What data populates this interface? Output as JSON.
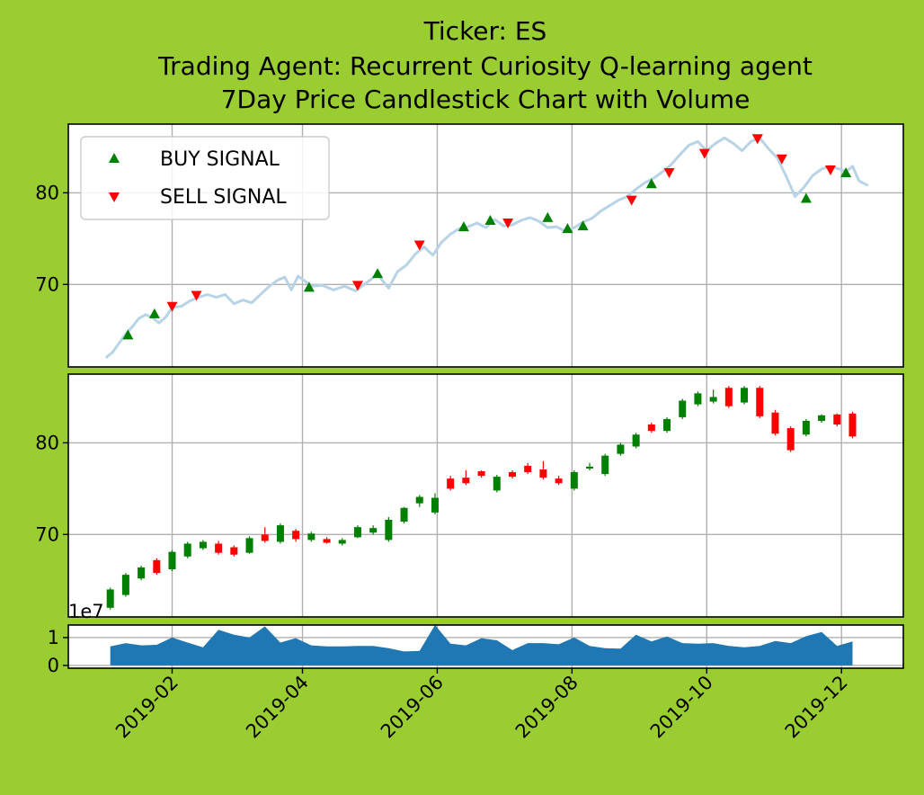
{
  "title_lines": [
    "Ticker: ES",
    "Trading Agent: Recurrent Curiosity Q-learning agent",
    "7Day Price Candlestick Chart with Volume"
  ],
  "colors": {
    "background": "#9acd32",
    "price_line": "#b8d3e6",
    "buy": "#008000",
    "sell": "#ff0000",
    "up_candle": "#008000",
    "down_candle": "#ff0000",
    "volume_fill": "#1f77b4"
  },
  "chart_data": [
    {
      "type": "line",
      "panel": "price",
      "legend": {
        "placement": "top-left",
        "buy_label": "BUY SIGNAL",
        "sell_label": "SELL SIGNAL"
      },
      "grid": true,
      "ylim": [
        61,
        87.5
      ],
      "yticks": [
        "70",
        "80"
      ],
      "ytick_values": [
        70,
        80
      ],
      "xticks": [
        "2019-02",
        "2019-04",
        "2019-06",
        "2019-08",
        "2019-10",
        "2019-12"
      ],
      "xtick_dates": [
        "2019-02-01",
        "2019-04-01",
        "2019-06-01",
        "2019-08-01",
        "2019-10-01",
        "2019-12-01"
      ],
      "xlim": [
        "2018-12-16",
        "2019-12-29"
      ],
      "price": [
        [
          "2019-01-02",
          62.0
        ],
        [
          "2019-01-05",
          62.6
        ],
        [
          "2019-01-08",
          63.6
        ],
        [
          "2019-01-11",
          64.6
        ],
        [
          "2019-01-14",
          65.4
        ],
        [
          "2019-01-17",
          66.3
        ],
        [
          "2019-01-20",
          66.7
        ],
        [
          "2019-01-23",
          66.4
        ],
        [
          "2019-01-26",
          65.8
        ],
        [
          "2019-01-29",
          66.4
        ],
        [
          "2019-02-01",
          67.5
        ],
        [
          "2019-02-05",
          67.6
        ],
        [
          "2019-02-09",
          68.2
        ],
        [
          "2019-02-13",
          68.6
        ],
        [
          "2019-02-17",
          68.9
        ],
        [
          "2019-02-21",
          68.6
        ],
        [
          "2019-02-25",
          68.9
        ],
        [
          "2019-03-01",
          67.9
        ],
        [
          "2019-03-05",
          68.3
        ],
        [
          "2019-03-09",
          68.0
        ],
        [
          "2019-03-13",
          68.9
        ],
        [
          "2019-03-17",
          69.8
        ],
        [
          "2019-03-21",
          70.5
        ],
        [
          "2019-03-24",
          70.8
        ],
        [
          "2019-03-27",
          69.4
        ],
        [
          "2019-03-30",
          70.9
        ],
        [
          "2019-04-02",
          70.4
        ],
        [
          "2019-04-05",
          69.8
        ],
        [
          "2019-04-10",
          69.9
        ],
        [
          "2019-04-15",
          69.4
        ],
        [
          "2019-04-20",
          69.8
        ],
        [
          "2019-04-25",
          69.3
        ],
        [
          "2019-04-30",
          70.2
        ],
        [
          "2019-05-05",
          71.1
        ],
        [
          "2019-05-10",
          69.6
        ],
        [
          "2019-05-14",
          71.4
        ],
        [
          "2019-05-18",
          72.1
        ],
        [
          "2019-05-22",
          73.3
        ],
        [
          "2019-05-26",
          74.1
        ],
        [
          "2019-05-30",
          73.2
        ],
        [
          "2019-06-03",
          74.6
        ],
        [
          "2019-06-07",
          75.5
        ],
        [
          "2019-06-11",
          76.1
        ],
        [
          "2019-06-15",
          76.3
        ],
        [
          "2019-06-19",
          76.7
        ],
        [
          "2019-06-23",
          76.2
        ],
        [
          "2019-06-27",
          77.1
        ],
        [
          "2019-07-01",
          76.4
        ],
        [
          "2019-07-05",
          76.5
        ],
        [
          "2019-07-09",
          77.0
        ],
        [
          "2019-07-13",
          77.3
        ],
        [
          "2019-07-17",
          76.9
        ],
        [
          "2019-07-21",
          76.2
        ],
        [
          "2019-07-25",
          76.3
        ],
        [
          "2019-07-29",
          75.8
        ],
        [
          "2019-08-02",
          76.2
        ],
        [
          "2019-08-06",
          76.8
        ],
        [
          "2019-08-10",
          77.2
        ],
        [
          "2019-08-14",
          78.0
        ],
        [
          "2019-08-18",
          78.6
        ],
        [
          "2019-08-22",
          79.2
        ],
        [
          "2019-08-26",
          79.6
        ],
        [
          "2019-08-30",
          80.4
        ],
        [
          "2019-09-03",
          81.1
        ],
        [
          "2019-09-07",
          81.6
        ],
        [
          "2019-09-11",
          82.3
        ],
        [
          "2019-09-15",
          83.1
        ],
        [
          "2019-09-19",
          84.2
        ],
        [
          "2019-09-23",
          85.2
        ],
        [
          "2019-09-27",
          85.6
        ],
        [
          "2019-10-01",
          84.6
        ],
        [
          "2019-10-05",
          85.4
        ],
        [
          "2019-10-09",
          86.0
        ],
        [
          "2019-10-13",
          85.4
        ],
        [
          "2019-10-17",
          84.6
        ],
        [
          "2019-10-21",
          85.6
        ],
        [
          "2019-10-25",
          86.0
        ],
        [
          "2019-10-29",
          84.8
        ],
        [
          "2019-11-02",
          83.8
        ],
        [
          "2019-11-06",
          81.8
        ],
        [
          "2019-11-10",
          79.6
        ],
        [
          "2019-11-14",
          80.6
        ],
        [
          "2019-11-18",
          81.9
        ],
        [
          "2019-11-22",
          82.6
        ],
        [
          "2019-11-26",
          82.9
        ],
        [
          "2019-11-30",
          82.6
        ],
        [
          "2019-12-03",
          82.3
        ],
        [
          "2019-12-06",
          82.9
        ],
        [
          "2019-12-09",
          81.3
        ],
        [
          "2019-12-13",
          80.8
        ]
      ],
      "buy_signals": [
        [
          "2019-01-12",
          64.5
        ],
        [
          "2019-01-24",
          66.8
        ],
        [
          "2019-04-04",
          69.7
        ],
        [
          "2019-05-05",
          71.2
        ],
        [
          "2019-06-13",
          76.3
        ],
        [
          "2019-06-25",
          77.0
        ],
        [
          "2019-07-21",
          77.3
        ],
        [
          "2019-07-30",
          76.1
        ],
        [
          "2019-08-06",
          76.4
        ],
        [
          "2019-09-06",
          81.0
        ],
        [
          "2019-11-15",
          79.4
        ],
        [
          "2019-12-03",
          82.2
        ]
      ],
      "sell_signals": [
        [
          "2019-02-01",
          67.6
        ],
        [
          "2019-02-12",
          68.8
        ],
        [
          "2019-04-26",
          69.9
        ],
        [
          "2019-05-24",
          74.3
        ],
        [
          "2019-07-03",
          76.7
        ],
        [
          "2019-08-28",
          79.2
        ],
        [
          "2019-09-14",
          82.2
        ],
        [
          "2019-09-30",
          84.3
        ],
        [
          "2019-10-24",
          85.9
        ],
        [
          "2019-11-04",
          83.7
        ],
        [
          "2019-11-26",
          82.5
        ]
      ]
    },
    {
      "type": "candlestick",
      "panel": "candles",
      "period": "7Day",
      "grid": true,
      "ylim": [
        61,
        87.5
      ],
      "yticks": [
        "70",
        "80"
      ],
      "ytick_values": [
        70,
        80
      ],
      "candles": [
        [
          "2019-01-04",
          62.0,
          64.0,
          61.8,
          64.2
        ],
        [
          "2019-01-11",
          63.4,
          65.6,
          63.2,
          65.8
        ],
        [
          "2019-01-18",
          65.2,
          66.4,
          65.0,
          66.6
        ],
        [
          "2019-01-25",
          67.2,
          65.8,
          65.6,
          67.4
        ],
        [
          "2019-02-01",
          66.2,
          68.1,
          66.0,
          68.3
        ],
        [
          "2019-02-08",
          67.6,
          69.0,
          67.4,
          69.2
        ],
        [
          "2019-02-15",
          68.5,
          69.2,
          68.3,
          69.4
        ],
        [
          "2019-02-22",
          69.0,
          68.0,
          67.8,
          69.3
        ],
        [
          "2019-03-01",
          68.6,
          67.8,
          67.6,
          68.8
        ],
        [
          "2019-03-08",
          68.0,
          69.6,
          67.9,
          69.8
        ],
        [
          "2019-03-15",
          70.0,
          69.3,
          69.1,
          70.8
        ],
        [
          "2019-03-22",
          69.2,
          71.0,
          69.0,
          71.2
        ],
        [
          "2019-03-29",
          70.4,
          69.5,
          69.2,
          70.6
        ],
        [
          "2019-04-05",
          69.4,
          70.1,
          69.2,
          70.3
        ],
        [
          "2019-04-12",
          69.5,
          69.1,
          69.0,
          69.7
        ],
        [
          "2019-04-19",
          69.0,
          69.4,
          68.8,
          69.6
        ],
        [
          "2019-04-26",
          69.7,
          70.8,
          69.6,
          71.0
        ],
        [
          "2019-05-03",
          70.2,
          70.7,
          70.0,
          71.0
        ],
        [
          "2019-05-10",
          69.4,
          71.6,
          69.2,
          71.9
        ],
        [
          "2019-05-17",
          71.4,
          72.9,
          71.2,
          73.0
        ],
        [
          "2019-05-24",
          73.4,
          74.1,
          73.0,
          74.3
        ],
        [
          "2019-05-31",
          72.4,
          74.0,
          72.2,
          74.5
        ],
        [
          "2019-06-07",
          76.1,
          75.0,
          74.8,
          76.4
        ],
        [
          "2019-06-14",
          76.2,
          75.6,
          75.4,
          77.0
        ],
        [
          "2019-06-21",
          76.9,
          76.4,
          76.2,
          77.0
        ],
        [
          "2019-06-28",
          74.8,
          76.3,
          74.6,
          76.5
        ],
        [
          "2019-07-05",
          76.8,
          76.3,
          76.1,
          77.0
        ],
        [
          "2019-07-12",
          77.5,
          76.8,
          76.6,
          77.8
        ],
        [
          "2019-07-19",
          77.1,
          76.2,
          76.0,
          78.0
        ],
        [
          "2019-07-26",
          76.1,
          75.6,
          75.4,
          76.4
        ],
        [
          "2019-08-02",
          75.0,
          76.8,
          74.8,
          77.0
        ],
        [
          "2019-08-09",
          77.2,
          77.4,
          77.0,
          77.8
        ],
        [
          "2019-08-16",
          76.6,
          78.6,
          76.4,
          78.8
        ],
        [
          "2019-08-23",
          78.8,
          79.8,
          78.6,
          80.0
        ],
        [
          "2019-08-30",
          79.6,
          80.9,
          79.4,
          81.1
        ],
        [
          "2019-09-06",
          82.0,
          81.3,
          81.1,
          82.2
        ],
        [
          "2019-09-13",
          81.3,
          82.6,
          81.1,
          82.8
        ],
        [
          "2019-09-20",
          82.8,
          84.6,
          82.6,
          84.8
        ],
        [
          "2019-09-27",
          84.2,
          85.4,
          84.0,
          85.6
        ],
        [
          "2019-10-04",
          84.5,
          85.0,
          84.3,
          85.8
        ],
        [
          "2019-10-11",
          86.0,
          84.0,
          83.8,
          86.2
        ],
        [
          "2019-10-18",
          84.4,
          86.0,
          84.2,
          86.2
        ],
        [
          "2019-10-25",
          86.0,
          82.9,
          82.7,
          86.2
        ],
        [
          "2019-11-01",
          83.3,
          81.0,
          80.8,
          83.6
        ],
        [
          "2019-11-08",
          81.6,
          79.2,
          79.0,
          81.8
        ],
        [
          "2019-11-15",
          80.9,
          82.4,
          80.7,
          82.6
        ],
        [
          "2019-11-22",
          82.4,
          83.0,
          82.2,
          83.1
        ],
        [
          "2019-11-29",
          83.1,
          82.0,
          81.8,
          83.2
        ],
        [
          "2019-12-06",
          83.2,
          80.7,
          80.5,
          83.4
        ]
      ]
    },
    {
      "type": "area",
      "panel": "volume",
      "grid": true,
      "scale_label": "1e7",
      "ylim": [
        -0.1,
        1.45
      ],
      "yticks": [
        "0",
        "1"
      ],
      "ytick_values": [
        0,
        1
      ],
      "volume": [
        [
          "2019-01-04",
          0.68
        ],
        [
          "2019-01-11",
          0.8
        ],
        [
          "2019-01-18",
          0.72
        ],
        [
          "2019-01-25",
          0.74
        ],
        [
          "2019-02-01",
          1.0
        ],
        [
          "2019-02-08",
          0.82
        ],
        [
          "2019-02-15",
          0.65
        ],
        [
          "2019-02-22",
          1.28
        ],
        [
          "2019-03-01",
          1.1
        ],
        [
          "2019-03-08",
          1.0
        ],
        [
          "2019-03-15",
          1.4
        ],
        [
          "2019-03-22",
          0.82
        ],
        [
          "2019-03-29",
          0.98
        ],
        [
          "2019-04-05",
          0.72
        ],
        [
          "2019-04-12",
          0.68
        ],
        [
          "2019-04-19",
          0.68
        ],
        [
          "2019-04-26",
          0.7
        ],
        [
          "2019-05-03",
          0.7
        ],
        [
          "2019-05-10",
          0.62
        ],
        [
          "2019-05-17",
          0.5
        ],
        [
          "2019-05-24",
          0.52
        ],
        [
          "2019-05-31",
          1.45
        ],
        [
          "2019-06-07",
          0.78
        ],
        [
          "2019-06-14",
          0.72
        ],
        [
          "2019-06-21",
          0.98
        ],
        [
          "2019-06-28",
          0.9
        ],
        [
          "2019-07-05",
          0.55
        ],
        [
          "2019-07-12",
          0.8
        ],
        [
          "2019-07-19",
          0.8
        ],
        [
          "2019-07-26",
          0.76
        ],
        [
          "2019-08-02",
          1.0
        ],
        [
          "2019-08-09",
          0.7
        ],
        [
          "2019-08-16",
          0.62
        ],
        [
          "2019-08-23",
          0.6
        ],
        [
          "2019-08-30",
          1.1
        ],
        [
          "2019-09-06",
          0.86
        ],
        [
          "2019-09-13",
          1.04
        ],
        [
          "2019-09-20",
          0.8
        ],
        [
          "2019-09-27",
          0.78
        ],
        [
          "2019-10-04",
          0.8
        ],
        [
          "2019-10-11",
          0.7
        ],
        [
          "2019-10-18",
          0.65
        ],
        [
          "2019-10-25",
          0.7
        ],
        [
          "2019-11-01",
          0.88
        ],
        [
          "2019-11-08",
          0.8
        ],
        [
          "2019-11-15",
          1.05
        ],
        [
          "2019-11-22",
          1.2
        ],
        [
          "2019-11-29",
          0.7
        ],
        [
          "2019-12-06",
          0.86
        ]
      ]
    }
  ]
}
